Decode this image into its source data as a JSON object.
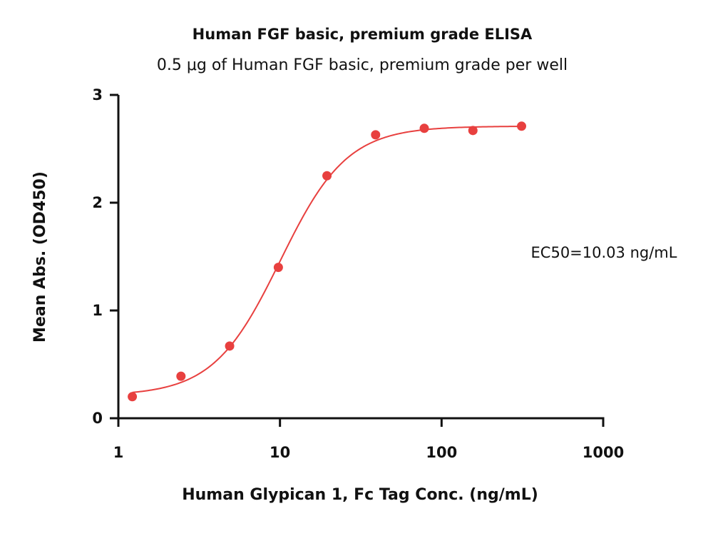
{
  "chart_data": {
    "type": "scatter",
    "title": "Human FGF basic, premium grade ELISA",
    "subtitle": "0.5 μg of Human FGF basic, premium grade per well",
    "xlabel": "Human Glypican 1, Fc Tag Conc. (ng/mL)",
    "ylabel": "Mean Abs. (OD450)",
    "xscale": "log",
    "xlim": [
      1,
      1000
    ],
    "ylim": [
      0,
      3
    ],
    "xticks": [
      "1",
      "10",
      "100",
      "1000"
    ],
    "yticks": [
      "0",
      "1",
      "2",
      "3"
    ],
    "grid": false,
    "legend": "none",
    "annotation": "EC50=10.03 ng/mL",
    "series": [
      {
        "x": [
          1.22,
          2.44,
          4.88,
          9.77,
          19.53,
          39.06,
          78.13,
          156.25,
          312.5
        ],
        "y": [
          0.2,
          0.39,
          0.67,
          1.4,
          2.25,
          2.63,
          2.69,
          2.67,
          2.71
        ],
        "color": "#e8403f",
        "fit": {
          "model": "4PL",
          "bottom": 0.21,
          "top": 2.71,
          "ec50": 10.03,
          "hill": 2.1,
          "x_range": [
            1.22,
            312.5
          ]
        }
      }
    ]
  }
}
